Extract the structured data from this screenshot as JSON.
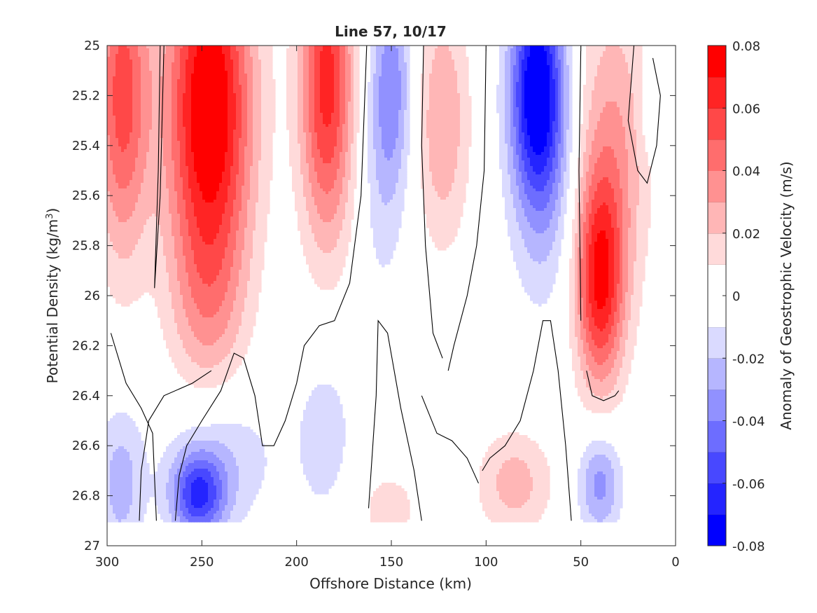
{
  "chart_data": {
    "type": "heatmap",
    "title": "Line 57, 10/17",
    "xlabel": "Offshore Distance (km)",
    "ylabel_main": "Potential Density (kg/m",
    "ylabel_sup": "3",
    "ylabel_tail": ")",
    "colorbar_label": "Anomaly of Geostrophic Velocity (m/s)",
    "xlim": [
      300,
      0
    ],
    "ylim": [
      25,
      27
    ],
    "x_ticks": [
      300,
      250,
      200,
      150,
      100,
      50,
      0
    ],
    "x_tick_labels": [
      "300",
      "250",
      "200",
      "150",
      "100",
      "50",
      "0"
    ],
    "y_ticks": [
      25,
      25.2,
      25.4,
      25.6,
      25.8,
      26,
      26.2,
      26.4,
      26.6,
      26.8,
      27
    ],
    "y_tick_labels": [
      "25",
      "25.2",
      "25.4",
      "25.6",
      "25.8",
      "26",
      "26.2",
      "26.4",
      "26.6",
      "26.8",
      "27"
    ],
    "clim": [
      -0.08,
      0.08
    ],
    "colorbar_ticks": [
      0.08,
      0.06,
      0.04,
      0.02,
      0,
      -0.02,
      -0.04,
      -0.06,
      -0.08
    ],
    "colorbar_tick_labels": [
      "0.08",
      "0.06",
      "0.04",
      "0.02",
      "0",
      "-0.02",
      "-0.04",
      "-0.06",
      "-0.08"
    ],
    "levels": [
      -0.08,
      -0.07,
      -0.06,
      -0.05,
      -0.04,
      -0.03,
      -0.02,
      -0.01,
      0,
      0.01,
      0.02,
      0.03,
      0.04,
      0.05,
      0.06,
      0.07,
      0.08
    ],
    "level_colors": [
      "#0000ff",
      "#2424ff",
      "#4848ff",
      "#6d6dff",
      "#9191ff",
      "#b6b6ff",
      "#dadaff",
      "#ffffff",
      "#ffffff",
      "#ffdada",
      "#ffb6b6",
      "#ff9191",
      "#ff6d6d",
      "#ff4848",
      "#ff2424",
      "#ff0000"
    ],
    "data_max_density": 26.9,
    "features": [
      {
        "x": 292,
        "y": 25.2,
        "sx": 10,
        "sy": 0.45,
        "amp": 0.055
      },
      {
        "x": 246,
        "y": 25.25,
        "sx": 16,
        "sy": 0.5,
        "amp": 0.085
      },
      {
        "x": 247,
        "y": 26.05,
        "sx": 14,
        "sy": 0.28,
        "amp": 0.02
      },
      {
        "x": 184,
        "y": 25.15,
        "sx": 10,
        "sy": 0.45,
        "amp": 0.065
      },
      {
        "x": 150,
        "y": 25.15,
        "sx": 8,
        "sy": 0.3,
        "amp": -0.035
      },
      {
        "x": 155,
        "y": 25.6,
        "sx": 9,
        "sy": 0.35,
        "amp": -0.012
      },
      {
        "x": 123,
        "y": 25.3,
        "sx": 10,
        "sy": 0.35,
        "amp": 0.03
      },
      {
        "x": 73,
        "y": 25.15,
        "sx": 10,
        "sy": 0.3,
        "amp": -0.075
      },
      {
        "x": 70,
        "y": 25.55,
        "sx": 12,
        "sy": 0.35,
        "amp": -0.025
      },
      {
        "x": 40,
        "y": 25.95,
        "sx": 9,
        "sy": 0.3,
        "amp": 0.065
      },
      {
        "x": 33,
        "y": 25.4,
        "sx": 14,
        "sy": 0.45,
        "amp": 0.03
      },
      {
        "x": 252,
        "y": 26.8,
        "sx": 10,
        "sy": 0.12,
        "amp": -0.055
      },
      {
        "x": 240,
        "y": 26.65,
        "sx": 20,
        "sy": 0.2,
        "amp": -0.02
      },
      {
        "x": 293,
        "y": 26.75,
        "sx": 9,
        "sy": 0.22,
        "amp": -0.025
      },
      {
        "x": 185,
        "y": 26.55,
        "sx": 12,
        "sy": 0.28,
        "amp": -0.015
      },
      {
        "x": 152,
        "y": 26.85,
        "sx": 13,
        "sy": 0.12,
        "amp": 0.015
      },
      {
        "x": 85,
        "y": 26.75,
        "sx": 14,
        "sy": 0.15,
        "amp": 0.025
      },
      {
        "x": 40,
        "y": 26.75,
        "sx": 8,
        "sy": 0.15,
        "amp": -0.035
      },
      {
        "x": 12,
        "y": 25.25,
        "sx": 5,
        "sy": 0.12,
        "amp": -0.015
      }
    ],
    "zero_contours": [
      [
        [
          283,
          26.9
        ],
        [
          282,
          26.7
        ],
        [
          278,
          26.5
        ],
        [
          270,
          26.4
        ],
        [
          255,
          26.35
        ],
        [
          245,
          26.3
        ]
      ],
      [
        [
          272,
          25.0
        ],
        [
          273,
          25.5
        ],
        [
          275,
          25.97
        ],
        [
          272,
          25.6
        ],
        [
          270,
          25.0
        ]
      ],
      [
        [
          298,
          26.15
        ],
        [
          290,
          26.35
        ],
        [
          282,
          26.45
        ],
        [
          276,
          26.55
        ],
        [
          274,
          26.9
        ]
      ],
      [
        [
          264,
          26.9
        ],
        [
          262,
          26.72
        ],
        [
          258,
          26.6
        ],
        [
          250,
          26.5
        ],
        [
          240,
          26.38
        ],
        [
          233,
          26.23
        ],
        [
          228,
          26.25
        ],
        [
          222,
          26.4
        ],
        [
          218,
          26.6
        ],
        [
          212,
          26.6
        ],
        [
          206,
          26.5
        ],
        [
          200,
          26.35
        ],
        [
          196,
          26.2
        ],
        [
          188,
          26.12
        ],
        [
          180,
          26.1
        ],
        [
          172,
          25.95
        ],
        [
          166,
          25.6
        ],
        [
          163,
          25.0
        ]
      ],
      [
        [
          162,
          26.85
        ],
        [
          158,
          26.4
        ],
        [
          157,
          26.1
        ],
        [
          152,
          26.15
        ],
        [
          145,
          26.45
        ],
        [
          138,
          26.7
        ],
        [
          134,
          26.9
        ]
      ],
      [
        [
          123,
          26.25
        ],
        [
          128,
          26.15
        ],
        [
          132,
          25.8
        ],
        [
          134,
          25.4
        ],
        [
          133,
          25.0
        ]
      ],
      [
        [
          100,
          25.0
        ],
        [
          101,
          25.5
        ],
        [
          105,
          25.8
        ],
        [
          110,
          26.0
        ],
        [
          117,
          26.2
        ],
        [
          120,
          26.3
        ]
      ],
      [
        [
          104,
          26.75
        ],
        [
          110,
          26.65
        ],
        [
          118,
          26.58
        ],
        [
          126,
          26.55
        ],
        [
          134,
          26.4
        ]
      ],
      [
        [
          55,
          26.9
        ],
        [
          58,
          26.6
        ],
        [
          62,
          26.3
        ],
        [
          66,
          26.1
        ],
        [
          70,
          26.1
        ],
        [
          75,
          26.3
        ],
        [
          82,
          26.5
        ],
        [
          90,
          26.6
        ],
        [
          98,
          26.65
        ],
        [
          102,
          26.7
        ]
      ],
      [
        [
          50,
          26.1
        ],
        [
          51,
          25.5
        ],
        [
          50,
          25.0
        ]
      ],
      [
        [
          47,
          26.3
        ],
        [
          44,
          26.4
        ],
        [
          38,
          26.42
        ],
        [
          32,
          26.4
        ],
        [
          30,
          26.38
        ]
      ],
      [
        [
          22,
          25.0
        ],
        [
          25,
          25.3
        ],
        [
          20,
          25.5
        ],
        [
          15,
          25.55
        ],
        [
          10,
          25.4
        ],
        [
          8,
          25.2
        ],
        [
          12,
          25.05
        ]
      ]
    ]
  }
}
